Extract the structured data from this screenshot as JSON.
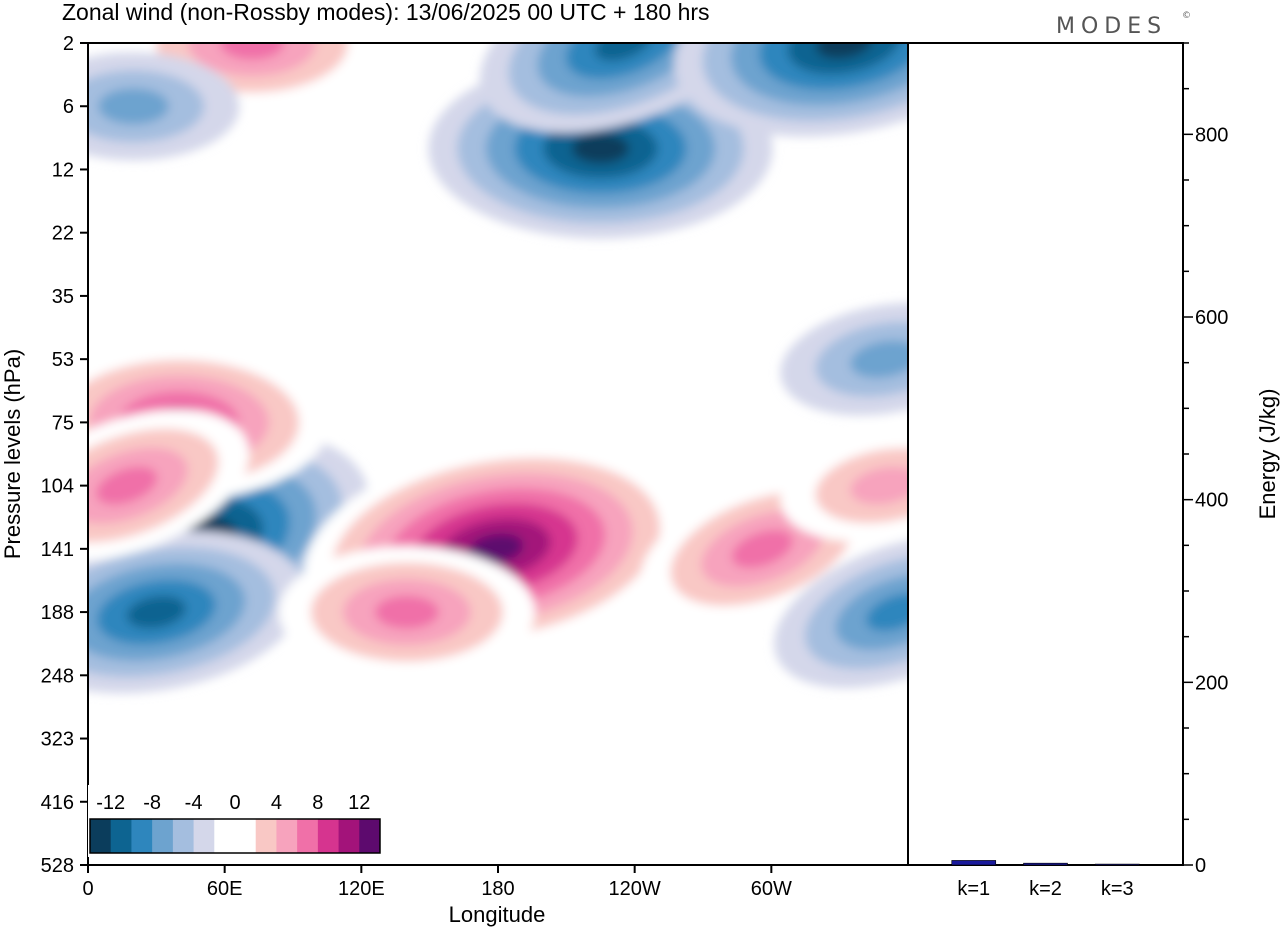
{
  "title": "Zonal wind (non-Rossby modes):  13/06/2025  00 UTC  + 180 hrs",
  "brand": "MODES",
  "brand_mark": "©",
  "chart_data": [
    {
      "type": "heatmap",
      "xlabel": "Longitude",
      "ylabel": "Pressure levels (hPa)",
      "x_ticks": [
        "0",
        "60E",
        "120E",
        "180",
        "120W",
        "60W"
      ],
      "x_range_deg": [
        0,
        360
      ],
      "y_ticks": [
        "2",
        "6",
        "12",
        "22",
        "35",
        "53",
        "75",
        "104",
        "141",
        "188",
        "248",
        "323",
        "416",
        "528"
      ],
      "colorbar": {
        "tick_labels": [
          "-12",
          "-8",
          "-4",
          "0",
          "4",
          "8",
          "12"
        ],
        "levels": [
          -14,
          -12,
          -10,
          -8,
          -6,
          -4,
          -2,
          2,
          4,
          6,
          8,
          10,
          12,
          14
        ],
        "colors": [
          "#0b3d5c",
          "#0d6491",
          "#2e86bd",
          "#6da3cf",
          "#a4bedf",
          "#d4d7ea",
          "#ffffff",
          "#ffffff",
          "#f9c8c5",
          "#f7a3bd",
          "#f070a8",
          "#d6348f",
          "#a3137a",
          "#5d0a6e"
        ]
      },
      "features": [
        {
          "lon": 42,
          "level": "141",
          "value": -14
        },
        {
          "lon": 30,
          "level": "188",
          "value": -10
        },
        {
          "lon": 40,
          "level": "75",
          "value": 10
        },
        {
          "lon": 17,
          "level": "104",
          "value": 7
        },
        {
          "lon": 179,
          "level": "141",
          "value": 13
        },
        {
          "lon": 140,
          "level": "188",
          "value": 8
        },
        {
          "lon": 296,
          "level": "141",
          "value": 8
        },
        {
          "lon": 350,
          "level": "104",
          "value": 6
        },
        {
          "lon": 225,
          "level": "10",
          "value": -11
        },
        {
          "lon": 235,
          "level": "2",
          "value": -10
        },
        {
          "lon": 332,
          "level": "2",
          "value": -11
        },
        {
          "lon": 72,
          "level": "2",
          "value": 7
        },
        {
          "lon": 355,
          "level": "188",
          "value": -7
        },
        {
          "lon": 350,
          "level": "53",
          "value": -6
        },
        {
          "lon": 20,
          "level": "6",
          "value": -6
        }
      ]
    },
    {
      "type": "bar",
      "ylabel": "Energy (J/kg)",
      "ylim": [
        0,
        900
      ],
      "y_ticks": [
        0,
        200,
        400,
        600,
        800
      ],
      "categories": [
        "k=1",
        "k=2",
        "k=3"
      ],
      "values": [
        5,
        2,
        1
      ],
      "bar_color": "#1a1a9c"
    }
  ]
}
